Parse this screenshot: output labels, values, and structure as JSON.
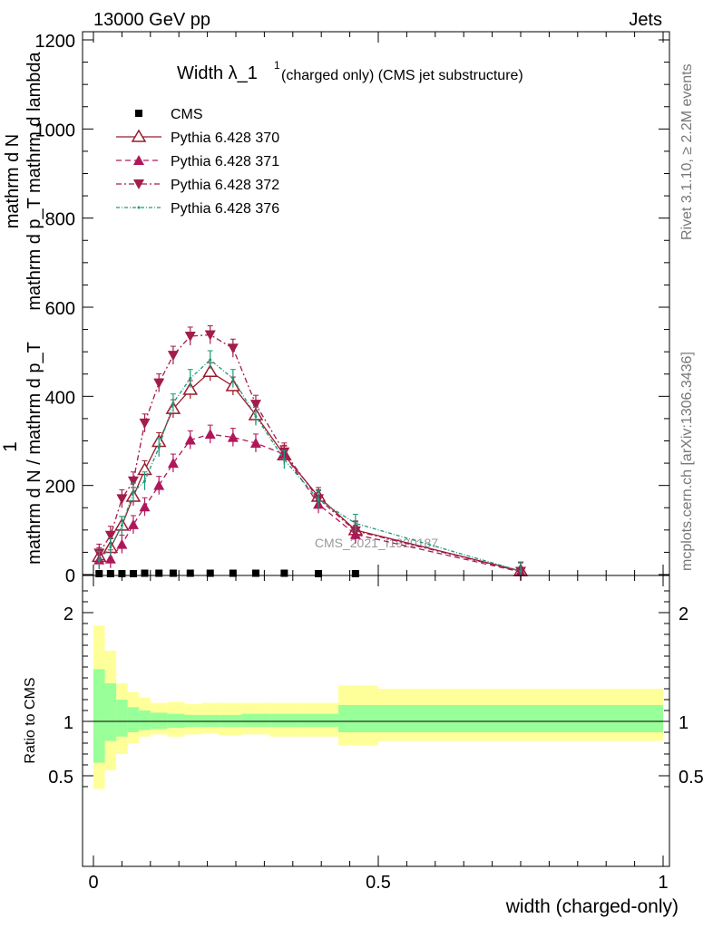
{
  "header": {
    "left": "13000 GeV pp",
    "right": "Jets",
    "title_main": "Width λ_1",
    "title_sup": "1",
    "title_rest": " (charged only) (CMS jet substructure)",
    "watermark": "CMS_2021_I1920187",
    "side_rivet": "Rivet 3.1.10, ≥ 2.2M events",
    "side_mcplots": "mcplots.cern.ch [arXiv:1306.3436]"
  },
  "ylabel_main": {
    "one": "1",
    "den": "mathrm d N / mathrm d p_T",
    "den_sub": "T",
    "num": "mathrm d",
    "num2": "N",
    "num_full": "mathrm d p_T mathrm d lambda",
    "num_line1": "mathrm d N",
    "num_line2": "mathrm d p",
    "num_line2_sub": "T",
    "num_line2_rest": "mathrm d lambda"
  },
  "ylabel_ratio": "Ratio to CMS",
  "xlabel": "width (charged-only)",
  "legend": [
    {
      "label": "CMS"
    },
    {
      "label": "Pythia 6.428 370"
    },
    {
      "label": "Pythia 6.428 371"
    },
    {
      "label": "Pythia 6.428 372"
    },
    {
      "label": "Pythia 6.428 376"
    }
  ],
  "colors": {
    "cms": "#000000",
    "p370": "#9a1b2d",
    "p371": "#b0175a",
    "p372": "#a21c4c",
    "p376": "#1a9a7a",
    "band_stat": "#99ff99",
    "band_tot": "#ffff99"
  },
  "chart_data": [
    {
      "type": "line",
      "panel": "main",
      "xlim": [
        0,
        1
      ],
      "ylim": [
        0,
        1200
      ],
      "yticks": [
        0,
        200,
        400,
        600,
        800,
        1000,
        1200
      ],
      "ytick_labels": [
        "0",
        "200",
        "400",
        "600",
        "800",
        "1000",
        "1200"
      ],
      "x": [
        0.01,
        0.03,
        0.05,
        0.07,
        0.09,
        0.115,
        0.14,
        0.17,
        0.205,
        0.245,
        0.285,
        0.335,
        0.395,
        0.46,
        0.75
      ],
      "series": [
        {
          "name": "CMS",
          "values": [
            2,
            2,
            2,
            2,
            3,
            3,
            3,
            3,
            3,
            3,
            3,
            3,
            2,
            2,
            null
          ]
        },
        {
          "name": "Pythia 6.428 370",
          "values": [
            40,
            60,
            110,
            175,
            235,
            298,
            372,
            415,
            455,
            423,
            358,
            268,
            175,
            100,
            8
          ]
        },
        {
          "name": "Pythia 6.428 371",
          "values": [
            33,
            35,
            68,
            112,
            152,
            200,
            250,
            302,
            315,
            308,
            295,
            270,
            158,
            90,
            6
          ]
        },
        {
          "name": "Pythia 6.428 372",
          "values": [
            48,
            88,
            170,
            210,
            340,
            430,
            492,
            535,
            538,
            508,
            382,
            275,
            170,
            98,
            7
          ]
        },
        {
          "name": "Pythia 6.428 376",
          "values": [
            32,
            62,
            110,
            185,
            210,
            285,
            385,
            440,
            482,
            440,
            355,
            258,
            168,
            115,
            8
          ]
        }
      ]
    },
    {
      "type": "area",
      "panel": "ratio",
      "xlim": [
        0,
        1
      ],
      "ylim": [
        0.35,
        2.3
      ],
      "yticks": [
        0.5,
        1,
        2
      ],
      "ytick_labels": [
        "0.5",
        "1",
        "2"
      ],
      "xticks": [
        0,
        0.5,
        1
      ],
      "xtick_labels": [
        "0",
        "0.5",
        "1"
      ],
      "bin_edges": [
        0,
        0.02,
        0.04,
        0.06,
        0.08,
        0.1,
        0.13,
        0.16,
        0.19,
        0.22,
        0.26,
        0.31,
        0.36,
        0.43,
        0.5,
        1.0
      ],
      "stat_band": {
        "low": [
          0.62,
          0.82,
          0.86,
          0.9,
          0.92,
          0.93,
          0.94,
          0.95,
          0.95,
          0.95,
          0.95,
          0.95,
          0.95,
          0.9,
          0.9
        ],
        "high": [
          1.48,
          1.35,
          1.2,
          1.13,
          1.1,
          1.08,
          1.07,
          1.06,
          1.06,
          1.06,
          1.07,
          1.07,
          1.07,
          1.15,
          1.15
        ]
      },
      "total_band": {
        "low": [
          0.38,
          0.55,
          0.7,
          0.8,
          0.86,
          0.88,
          0.86,
          0.88,
          0.89,
          0.87,
          0.88,
          0.86,
          0.86,
          0.78,
          0.82
        ],
        "high": [
          1.88,
          1.65,
          1.35,
          1.27,
          1.22,
          1.17,
          1.18,
          1.16,
          1.17,
          1.17,
          1.17,
          1.17,
          1.17,
          1.33,
          1.3
        ]
      }
    }
  ]
}
